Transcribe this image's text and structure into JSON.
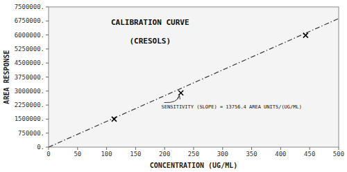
{
  "chart_data": {
    "type": "scatter",
    "title": "CALIBRATION CURVE",
    "subtitle": "(CRESOLS)",
    "x_label": "CONCENTRATION (UG/ML)",
    "y_label": "AREA RESPONSE",
    "xlim": [
      0,
      500
    ],
    "ylim": [
      0,
      7500000
    ],
    "xticks": [
      0,
      50,
      100,
      150,
      200,
      250,
      300,
      350,
      400,
      450,
      500
    ],
    "yticks": [
      {
        "value": 0,
        "label": "0."
      },
      {
        "value": 750000,
        "label": "750000."
      },
      {
        "value": 1500000,
        "label": "1500000."
      },
      {
        "value": 2250000,
        "label": "2250000."
      },
      {
        "value": 3000000,
        "label": "3000000."
      },
      {
        "value": 3750000,
        "label": "3750000."
      },
      {
        "value": 4500000,
        "label": "4500000."
      },
      {
        "value": 5250000,
        "label": "5250000."
      },
      {
        "value": 6000000,
        "label": "6000000."
      },
      {
        "value": 6750000,
        "label": "6750000."
      },
      {
        "value": 7500000,
        "label": "7500000."
      }
    ],
    "grid": false,
    "series": [
      {
        "type": "line",
        "line_style": "dash-dot",
        "color": "#444444",
        "x": [
          0,
          500
        ],
        "values": [
          0,
          6878200
        ]
      },
      {
        "type": "scatter",
        "marker": "x",
        "color": "#000000",
        "x": [
          113,
          228,
          443
        ],
        "values": [
          1500000,
          2900000,
          5980000
        ]
      }
    ],
    "annotations": [
      {
        "text": "SENSITIVITY (SLOPE) = 13756.4 AREA UNITS/(UG/ML)",
        "x": 228,
        "y": 2900000
      }
    ]
  }
}
